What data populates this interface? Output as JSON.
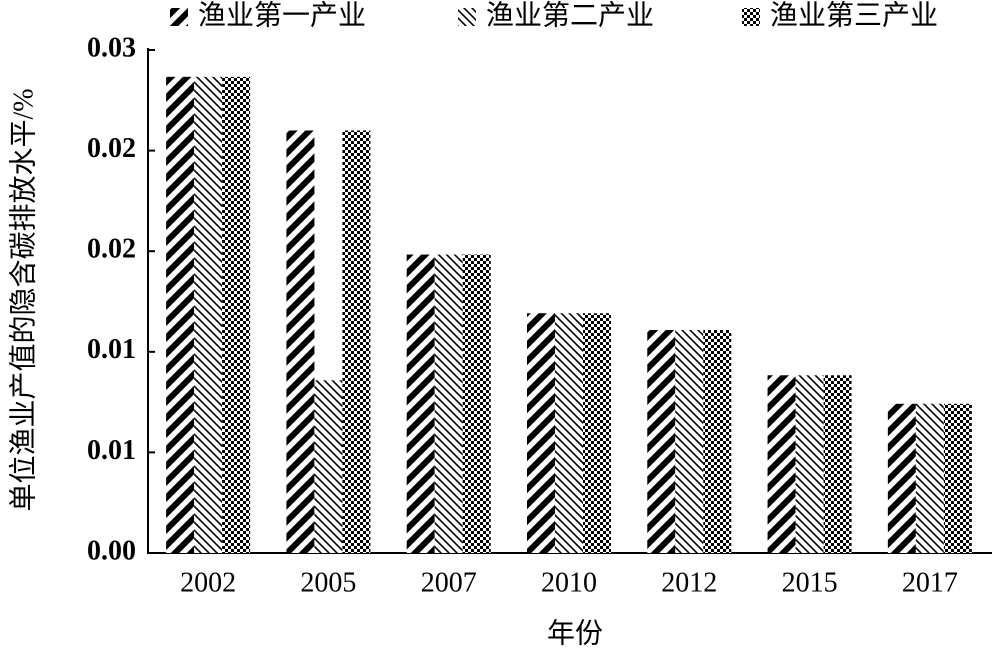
{
  "chart_data": {
    "type": "bar",
    "y_label": "单位渔业产值的隐含碳排放水平/%",
    "x_label": "年份",
    "categories": [
      "2002",
      "2005",
      "2007",
      "2010",
      "2012",
      "2015",
      "2017"
    ],
    "series": [
      {
        "name": "渔业第一产业",
        "color": "#000000",
        "values": [
          0.0284,
          0.0252,
          0.0178,
          0.0143,
          0.0133,
          0.0106,
          0.0089
        ]
      },
      {
        "name": "渔业第二产业",
        "color": "#000000",
        "values": [
          0.0284,
          0.0103,
          0.0178,
          0.0143,
          0.0133,
          0.0106,
          0.0089
        ]
      },
      {
        "name": "渔业第三产业",
        "color": "#000000",
        "values": [
          0.0284,
          0.0252,
          0.0178,
          0.0143,
          0.0133,
          0.0106,
          0.0089
        ]
      }
    ],
    "ylim": [
      0,
      0.03
    ],
    "yticks": [
      {
        "value": 0,
        "label": "0.00"
      },
      {
        "value": 0.006,
        "label": "0.01"
      },
      {
        "value": 0.012,
        "label": "0.01"
      },
      {
        "value": 0.018,
        "label": "0.02"
      },
      {
        "value": 0.024,
        "label": "0.02"
      },
      0.03
    ],
    "grid": false
  }
}
